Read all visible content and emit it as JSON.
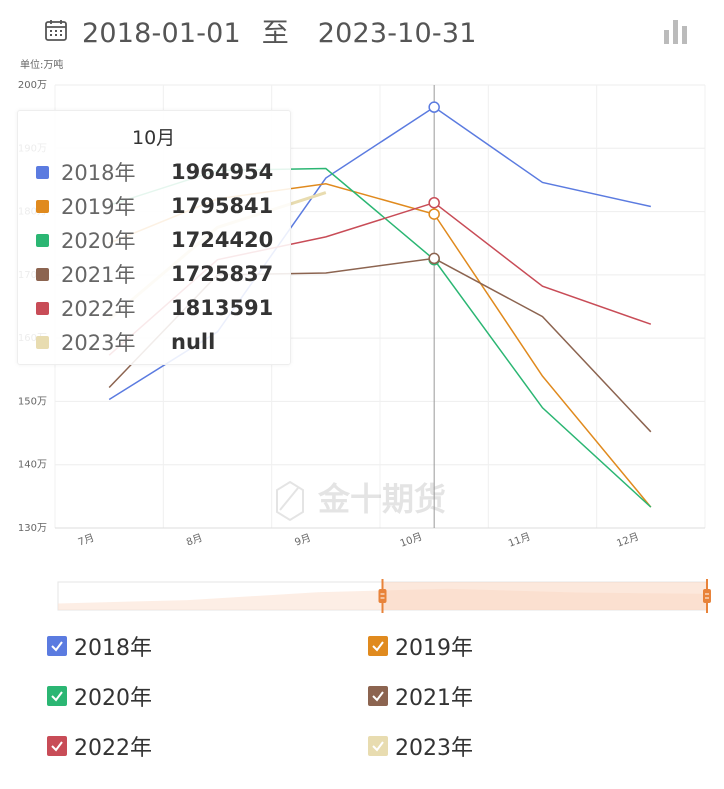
{
  "header": {
    "start_date": "2018-01-01",
    "separator": "至",
    "end_date": "2023-10-31"
  },
  "icons": {
    "calendar": "calendar-icon",
    "chart_type": "bar-chart-icon"
  },
  "watermark": "金十期货",
  "tooltip": {
    "title": "10月",
    "rows": [
      {
        "name": "2018年",
        "value": "1964954",
        "color": "#5b7be0"
      },
      {
        "name": "2019年",
        "value": "1795841",
        "color": "#e08a1e"
      },
      {
        "name": "2020年",
        "value": "1724420",
        "color": "#2bb673"
      },
      {
        "name": "2021年",
        "value": "1725837",
        "color": "#8c6450"
      },
      {
        "name": "2022年",
        "value": "1813591",
        "color": "#c84c57"
      },
      {
        "name": "2023年",
        "value": "null",
        "color": "#e8dcb0"
      }
    ]
  },
  "legend": [
    {
      "name": "2018年",
      "color": "#5b7be0",
      "checked": true
    },
    {
      "name": "2019年",
      "color": "#e08a1e",
      "checked": true
    },
    {
      "name": "2020年",
      "color": "#2bb673",
      "checked": true
    },
    {
      "name": "2021年",
      "color": "#8c6450",
      "checked": true
    },
    {
      "name": "2022年",
      "color": "#c84c57",
      "checked": true
    },
    {
      "name": "2023年",
      "color": "#e8dcb0",
      "checked": true
    }
  ],
  "chart_data": {
    "type": "line",
    "unit_label": "单位:万吨",
    "categories": [
      "7月",
      "8月",
      "9月",
      "10月",
      "11月",
      "12月"
    ],
    "ylim": [
      130,
      200
    ],
    "yticks": [
      130,
      140,
      150,
      160,
      170,
      180,
      190,
      200
    ],
    "ytick_suffix": "万",
    "grid": true,
    "highlighted_category": "10月",
    "series": [
      {
        "name": "2018年",
        "color": "#5b7be0",
        "values": [
          150.3,
          161.0,
          185.3,
          196.5,
          184.6,
          180.8
        ]
      },
      {
        "name": "2019年",
        "color": "#e08a1e",
        "values": [
          175.0,
          182.0,
          184.4,
          179.6,
          154.0,
          133.3
        ]
      },
      {
        "name": "2020年",
        "color": "#2bb673",
        "values": [
          181.0,
          186.5,
          186.8,
          172.4,
          149.0,
          133.3
        ]
      },
      {
        "name": "2021年",
        "color": "#8c6450",
        "values": [
          152.2,
          170.0,
          170.3,
          172.6,
          163.4,
          145.2
        ]
      },
      {
        "name": "2022年",
        "color": "#c84c57",
        "values": [
          157.3,
          172.4,
          176.0,
          181.4,
          168.2,
          162.2
        ]
      },
      {
        "name": "2023年",
        "color": "#e8dcb0",
        "values": [
          163.0,
          177.5,
          183.0,
          null,
          null,
          null
        ]
      }
    ],
    "zoom_range": [
      0.5,
      1.0
    ]
  }
}
